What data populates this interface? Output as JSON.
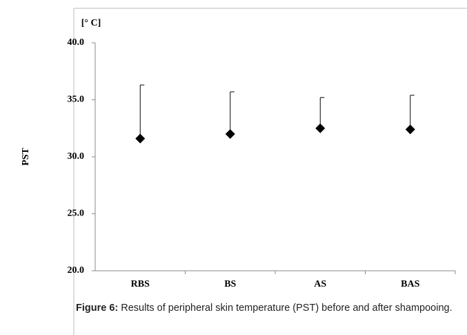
{
  "chart_data": {
    "type": "scatter",
    "unit_label": "[° C]",
    "y_label": "PST",
    "categories": [
      "RBS",
      "BS",
      "AS",
      "BAS"
    ],
    "values": [
      31.6,
      32.0,
      32.5,
      32.4
    ],
    "errors": [
      4.7,
      3.7,
      2.7,
      3.0
    ],
    "color": "#000000",
    "ylim": [
      20,
      40
    ],
    "yticks": [
      {
        "value": 20,
        "label": "20.0"
      },
      {
        "value": 25,
        "label": "25.0"
      },
      {
        "value": 30,
        "label": "30.0"
      },
      {
        "value": 35,
        "label": "35.0"
      },
      {
        "value": 40,
        "label": "40.0"
      }
    ],
    "grid": false
  },
  "caption": {
    "label": "Figure 6:",
    "text": "Results of peripheral skin temperature (PST) before and after shampooing."
  }
}
